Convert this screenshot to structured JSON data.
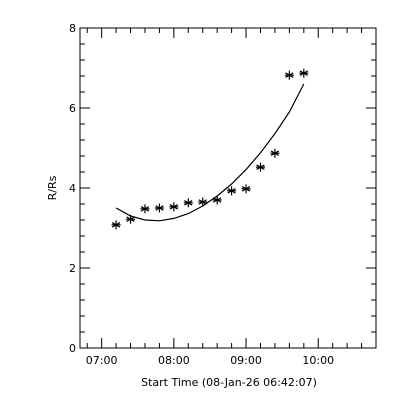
{
  "chart_data": {
    "type": "scatter",
    "xlabel": "Start Time (08-Jan-26 06:42:07)",
    "ylabel": "R/Rs",
    "xlim": [
      "06:42",
      "10:48"
    ],
    "ylim": [
      0,
      8
    ],
    "x_ticks": [
      "07:00",
      "08:00",
      "09:00",
      "10:00"
    ],
    "y_ticks": [
      0,
      2,
      4,
      6,
      8
    ],
    "grid": false,
    "series": [
      {
        "marker": "asterisk",
        "x": [
          "07:12",
          "07:24",
          "07:36",
          "07:48",
          "08:00",
          "08:12",
          "08:24",
          "08:36",
          "08:48",
          "09:00",
          "09:12",
          "09:24",
          "09:36",
          "09:48"
        ],
        "values": [
          3.08,
          3.22,
          3.48,
          3.5,
          3.53,
          3.63,
          3.65,
          3.7,
          3.93,
          3.98,
          4.52,
          4.87,
          6.82,
          6.87
        ]
      },
      {
        "type": "line",
        "x": [
          "07:12",
          "07:24",
          "07:36",
          "07:48",
          "08:00",
          "08:12",
          "08:24",
          "08:36",
          "08:48",
          "09:00",
          "09:12",
          "09:24",
          "09:36",
          "09:48"
        ],
        "values": [
          3.5,
          3.3,
          3.2,
          3.18,
          3.24,
          3.36,
          3.55,
          3.8,
          4.1,
          4.46,
          4.88,
          5.36,
          5.9,
          6.6
        ]
      }
    ]
  }
}
